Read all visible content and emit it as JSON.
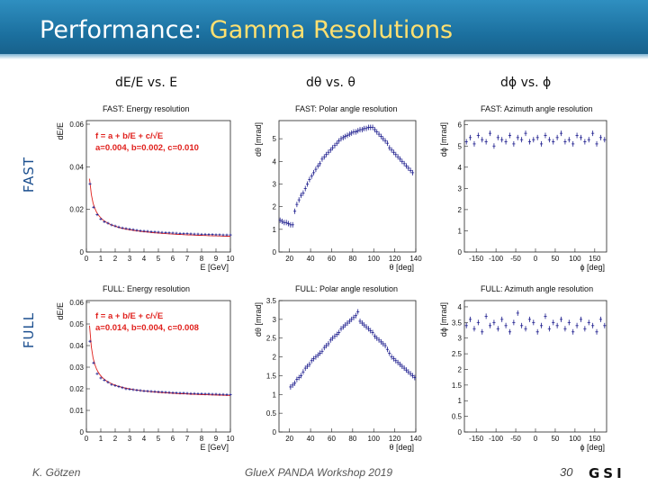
{
  "slide": {
    "title_plain": "Performance: ",
    "title_highlight": "Gamma Resolutions",
    "columns": [
      "dE/E vs. E",
      "dθ vs. θ",
      "dϕ vs. ϕ"
    ],
    "rows": [
      "FAST",
      "FULL"
    ],
    "footer_author": "K. Götzen",
    "footer_event": "GlueX PANDA Workshop 2019",
    "page_number": "30",
    "logo_text": "GSI",
    "colors": {
      "title_highlight": "#ffe070",
      "row_label": "#1b4f8f",
      "fit_text": "#e0201c",
      "marker": "#1a1a8c"
    }
  },
  "chart_data": [
    {
      "id": "fast-energy",
      "type": "scatter",
      "title": "FAST: Energy resolution",
      "xlabel": "E [GeV]",
      "ylabel": "dE/E",
      "xlim": [
        0,
        10
      ],
      "ylim": [
        0,
        0.06
      ],
      "xticks": [
        0,
        1,
        2,
        3,
        4,
        5,
        6,
        7,
        8,
        9,
        10
      ],
      "yticks": [
        0,
        0.02,
        0.04,
        0.06
      ],
      "ytick_labels": [
        "0",
        "0.02",
        "0.04",
        "0.06"
      ],
      "fit_text": [
        "f = a + b/E + c/√E",
        "a=0.004, b=0.002, c=0.010"
      ],
      "fit": {
        "a": 0.004,
        "b": 0.002,
        "c": 0.01
      },
      "x": [
        0.25,
        0.5,
        0.75,
        1,
        1.25,
        1.5,
        1.75,
        2,
        2.25,
        2.5,
        2.75,
        3,
        3.25,
        3.5,
        3.75,
        4,
        4.25,
        4.5,
        4.75,
        5,
        5.25,
        5.5,
        5.75,
        6,
        6.25,
        6.5,
        6.75,
        7,
        7.25,
        7.5,
        7.75,
        8,
        8.25,
        8.5,
        8.75,
        9,
        9.25,
        9.5,
        9.75,
        10
      ],
      "y": [
        0.032,
        0.021,
        0.0175,
        0.0155,
        0.0142,
        0.0135,
        0.0127,
        0.0122,
        0.0117,
        0.0113,
        0.011,
        0.0107,
        0.0105,
        0.0102,
        0.01,
        0.0098,
        0.0097,
        0.0095,
        0.0094,
        0.0093,
        0.0092,
        0.0091,
        0.009,
        0.0089,
        0.0088,
        0.0087,
        0.0086,
        0.0086,
        0.0085,
        0.0084,
        0.0084,
        0.0083,
        0.0083,
        0.0082,
        0.0082,
        0.0081,
        0.0081,
        0.008,
        0.008,
        0.008
      ]
    },
    {
      "id": "fast-polar",
      "type": "scatter",
      "title": "FAST: Polar angle resolution",
      "xlabel": "θ [deg]",
      "ylabel": "dθ [mrad]",
      "xlim": [
        10,
        140
      ],
      "ylim": [
        0,
        5.8
      ],
      "xticks": [
        20,
        40,
        60,
        80,
        100,
        120,
        140
      ],
      "yticks": [
        0,
        1,
        2,
        3,
        4,
        5
      ],
      "ytick_labels": [
        "0",
        "1",
        "2",
        "3",
        "4",
        "5"
      ],
      "x": [
        11,
        13,
        15,
        17,
        19,
        21,
        23,
        25,
        27,
        29,
        31,
        33,
        35,
        37,
        39,
        41,
        43,
        45,
        47,
        49,
        51,
        53,
        55,
        57,
        59,
        61,
        63,
        65,
        67,
        69,
        71,
        73,
        75,
        77,
        79,
        81,
        83,
        85,
        87,
        89,
        91,
        93,
        95,
        97,
        99,
        101,
        103,
        105,
        107,
        109,
        111,
        113,
        115,
        117,
        119,
        121,
        123,
        125,
        127,
        129,
        131,
        133,
        135,
        137
      ],
      "y": [
        1.4,
        1.35,
        1.3,
        1.3,
        1.25,
        1.2,
        1.2,
        1.8,
        2.1,
        2.3,
        2.5,
        2.6,
        2.8,
        3.0,
        3.2,
        3.35,
        3.5,
        3.65,
        3.8,
        3.9,
        4.1,
        4.2,
        4.3,
        4.4,
        4.5,
        4.6,
        4.7,
        4.8,
        4.9,
        5.0,
        5.05,
        5.1,
        5.15,
        5.2,
        5.25,
        5.3,
        5.3,
        5.35,
        5.4,
        5.4,
        5.45,
        5.45,
        5.5,
        5.5,
        5.5,
        5.4,
        5.3,
        5.2,
        5.1,
        5.0,
        4.9,
        4.8,
        4.6,
        4.5,
        4.4,
        4.3,
        4.2,
        4.1,
        4.0,
        3.9,
        3.8,
        3.7,
        3.6,
        3.5
      ]
    },
    {
      "id": "fast-azimuth",
      "type": "scatter",
      "title": "FAST: Azimuth angle resolution",
      "xlabel": "ϕ [deg]",
      "ylabel": "dϕ [mrad]",
      "xlim": [
        -180,
        180
      ],
      "ylim": [
        0,
        6.2
      ],
      "xticks": [
        -150,
        -100,
        -50,
        0,
        50,
        100,
        150
      ],
      "yticks": [
        0,
        1,
        2,
        3,
        4,
        5,
        6
      ],
      "ytick_labels": [
        "0",
        "1",
        "2",
        "3",
        "4",
        "5",
        "6"
      ],
      "x": [
        -175,
        -165,
        -155,
        -145,
        -135,
        -125,
        -115,
        -105,
        -95,
        -85,
        -75,
        -65,
        -55,
        -45,
        -35,
        -25,
        -15,
        -5,
        5,
        15,
        25,
        35,
        45,
        55,
        65,
        75,
        85,
        95,
        105,
        115,
        125,
        135,
        145,
        155,
        165,
        175
      ],
      "y": [
        5.2,
        5.4,
        5.1,
        5.5,
        5.3,
        5.2,
        5.6,
        5.0,
        5.4,
        5.3,
        5.2,
        5.5,
        5.1,
        5.4,
        5.3,
        5.6,
        5.2,
        5.3,
        5.4,
        5.1,
        5.5,
        5.3,
        5.2,
        5.4,
        5.6,
        5.2,
        5.3,
        5.1,
        5.5,
        5.4,
        5.2,
        5.3,
        5.6,
        5.1,
        5.4,
        5.3
      ]
    },
    {
      "id": "full-energy",
      "type": "scatter",
      "title": "FULL: Energy resolution",
      "xlabel": "E [GeV]",
      "ylabel": "dE/E",
      "xlim": [
        0,
        10
      ],
      "ylim": [
        0,
        0.06
      ],
      "xticks": [
        0,
        1,
        2,
        3,
        4,
        5,
        6,
        7,
        8,
        9,
        10
      ],
      "yticks": [
        0,
        0.01,
        0.02,
        0.03,
        0.04,
        0.05,
        0.06
      ],
      "ytick_labels": [
        "0",
        "0.01",
        "0.02",
        "0.03",
        "0.04",
        "0.05",
        "0.06"
      ],
      "fit_text": [
        "f = a + b/E + c/√E",
        "a=0.014, b=0.004, c=0.008"
      ],
      "fit": {
        "a": 0.014,
        "b": 0.004,
        "c": 0.008
      },
      "x": [
        0.25,
        0.5,
        0.75,
        1,
        1.25,
        1.5,
        1.75,
        2,
        2.25,
        2.5,
        2.75,
        3,
        3.25,
        3.5,
        3.75,
        4,
        4.25,
        4.5,
        4.75,
        5,
        5.25,
        5.5,
        5.75,
        6,
        6.25,
        6.5,
        6.75,
        7,
        7.25,
        7.5,
        7.75,
        8,
        8.25,
        8.5,
        8.75,
        9,
        9.25,
        9.5,
        9.75,
        10
      ],
      "y": [
        0.042,
        0.032,
        0.027,
        0.025,
        0.024,
        0.023,
        0.022,
        0.0215,
        0.021,
        0.0205,
        0.02,
        0.0198,
        0.0196,
        0.0194,
        0.0192,
        0.019,
        0.0189,
        0.0188,
        0.0187,
        0.0186,
        0.0185,
        0.0184,
        0.0183,
        0.0182,
        0.0181,
        0.018,
        0.018,
        0.0179,
        0.0178,
        0.0178,
        0.0177,
        0.0177,
        0.0176,
        0.0176,
        0.0175,
        0.0175,
        0.0174,
        0.0174,
        0.0173,
        0.0173
      ]
    },
    {
      "id": "full-polar",
      "type": "scatter",
      "title": "FULL: Polar angle resolution",
      "xlabel": "θ [deg]",
      "ylabel": "dθ [mrad]",
      "xlim": [
        10,
        140
      ],
      "ylim": [
        0,
        3.5
      ],
      "xticks": [
        20,
        40,
        60,
        80,
        100,
        120,
        140
      ],
      "yticks": [
        0,
        0.5,
        1,
        1.5,
        2,
        2.5,
        3,
        3.5
      ],
      "ytick_labels": [
        "0",
        "0.5",
        "1",
        "1.5",
        "2",
        "2.5",
        "3",
        "3.5"
      ],
      "x": [
        21,
        23,
        25,
        27,
        29,
        31,
        33,
        35,
        37,
        39,
        41,
        43,
        45,
        47,
        49,
        51,
        53,
        55,
        57,
        59,
        61,
        63,
        65,
        67,
        69,
        71,
        73,
        75,
        77,
        79,
        81,
        83,
        85,
        87,
        89,
        91,
        93,
        95,
        97,
        99,
        101,
        103,
        105,
        107,
        109,
        111,
        113,
        115,
        117,
        119,
        121,
        123,
        125,
        127,
        129,
        131,
        133,
        135,
        137,
        139
      ],
      "y": [
        1.2,
        1.25,
        1.3,
        1.4,
        1.45,
        1.5,
        1.6,
        1.7,
        1.75,
        1.8,
        1.9,
        1.95,
        2.0,
        2.05,
        2.1,
        2.15,
        2.25,
        2.3,
        2.35,
        2.45,
        2.5,
        2.55,
        2.6,
        2.65,
        2.75,
        2.8,
        2.85,
        2.9,
        2.95,
        3.0,
        3.05,
        3.1,
        3.2,
        2.95,
        2.9,
        2.85,
        2.8,
        2.75,
        2.7,
        2.65,
        2.55,
        2.5,
        2.45,
        2.4,
        2.35,
        2.3,
        2.2,
        2.1,
        2.0,
        1.95,
        1.9,
        1.85,
        1.8,
        1.75,
        1.7,
        1.65,
        1.6,
        1.55,
        1.5,
        1.45
      ]
    },
    {
      "id": "full-azimuth",
      "type": "scatter",
      "title": "FULL: Azimuth angle resolution",
      "xlabel": "ϕ [deg]",
      "ylabel": "dϕ [mrad]",
      "xlim": [
        -180,
        180
      ],
      "ylim": [
        0,
        4.2
      ],
      "xticks": [
        -150,
        -100,
        -50,
        0,
        50,
        100,
        150
      ],
      "yticks": [
        0,
        0.5,
        1,
        1.5,
        2,
        2.5,
        3,
        3.5,
        4
      ],
      "ytick_labels": [
        "0",
        "0.5",
        "1",
        "1.5",
        "2",
        "2.5",
        "3",
        "3.5",
        "4"
      ],
      "x": [
        -175,
        -165,
        -155,
        -145,
        -135,
        -125,
        -115,
        -105,
        -95,
        -85,
        -75,
        -65,
        -55,
        -45,
        -35,
        -25,
        -15,
        -5,
        5,
        15,
        25,
        35,
        45,
        55,
        65,
        75,
        85,
        95,
        105,
        115,
        125,
        135,
        145,
        155,
        165,
        175
      ],
      "y": [
        3.4,
        3.6,
        3.3,
        3.5,
        3.2,
        3.7,
        3.4,
        3.5,
        3.3,
        3.6,
        3.4,
        3.2,
        3.5,
        3.8,
        3.4,
        3.3,
        3.6,
        3.5,
        3.2,
        3.4,
        3.7,
        3.3,
        3.5,
        3.4,
        3.6,
        3.3,
        3.5,
        3.2,
        3.4,
        3.6,
        3.3,
        3.5,
        3.4,
        3.2,
        3.6,
        3.4
      ]
    }
  ]
}
